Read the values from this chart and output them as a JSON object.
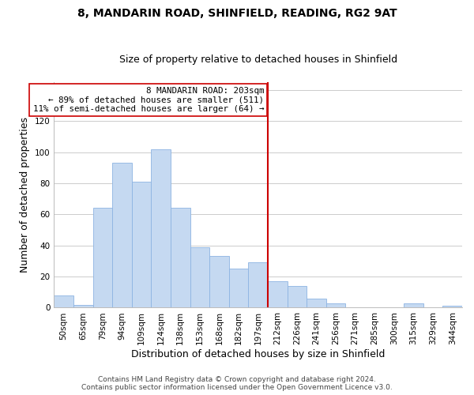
{
  "title": "8, MANDARIN ROAD, SHINFIELD, READING, RG2 9AT",
  "subtitle": "Size of property relative to detached houses in Shinfield",
  "xlabel": "Distribution of detached houses by size in Shinfield",
  "ylabel": "Number of detached properties",
  "bin_labels": [
    "50sqm",
    "65sqm",
    "79sqm",
    "94sqm",
    "109sqm",
    "124sqm",
    "138sqm",
    "153sqm",
    "168sqm",
    "182sqm",
    "197sqm",
    "212sqm",
    "226sqm",
    "241sqm",
    "256sqm",
    "271sqm",
    "285sqm",
    "300sqm",
    "315sqm",
    "329sqm",
    "344sqm"
  ],
  "bar_values": [
    8,
    2,
    64,
    93,
    81,
    102,
    64,
    39,
    33,
    25,
    29,
    17,
    14,
    6,
    3,
    0,
    0,
    0,
    3,
    0,
    1
  ],
  "bar_color": "#c5d9f1",
  "bar_edge_color": "#8db4e2",
  "vline_x": 10.5,
  "vline_color": "#cc0000",
  "annotation_title": "8 MANDARIN ROAD: 203sqm",
  "annotation_line1": "← 89% of detached houses are smaller (511)",
  "annotation_line2": "11% of semi-detached houses are larger (64) →",
  "annotation_box_color": "#ffffff",
  "annotation_box_edge": "#cc0000",
  "ylim": [
    0,
    145
  ],
  "footer1": "Contains HM Land Registry data © Crown copyright and database right 2024.",
  "footer2": "Contains public sector information licensed under the Open Government Licence v3.0.",
  "background_color": "#ffffff",
  "grid_color": "#cccccc",
  "title_fontsize": 10,
  "subtitle_fontsize": 9,
  "axis_label_fontsize": 9,
  "tick_fontsize": 7.5,
  "footer_fontsize": 6.5
}
